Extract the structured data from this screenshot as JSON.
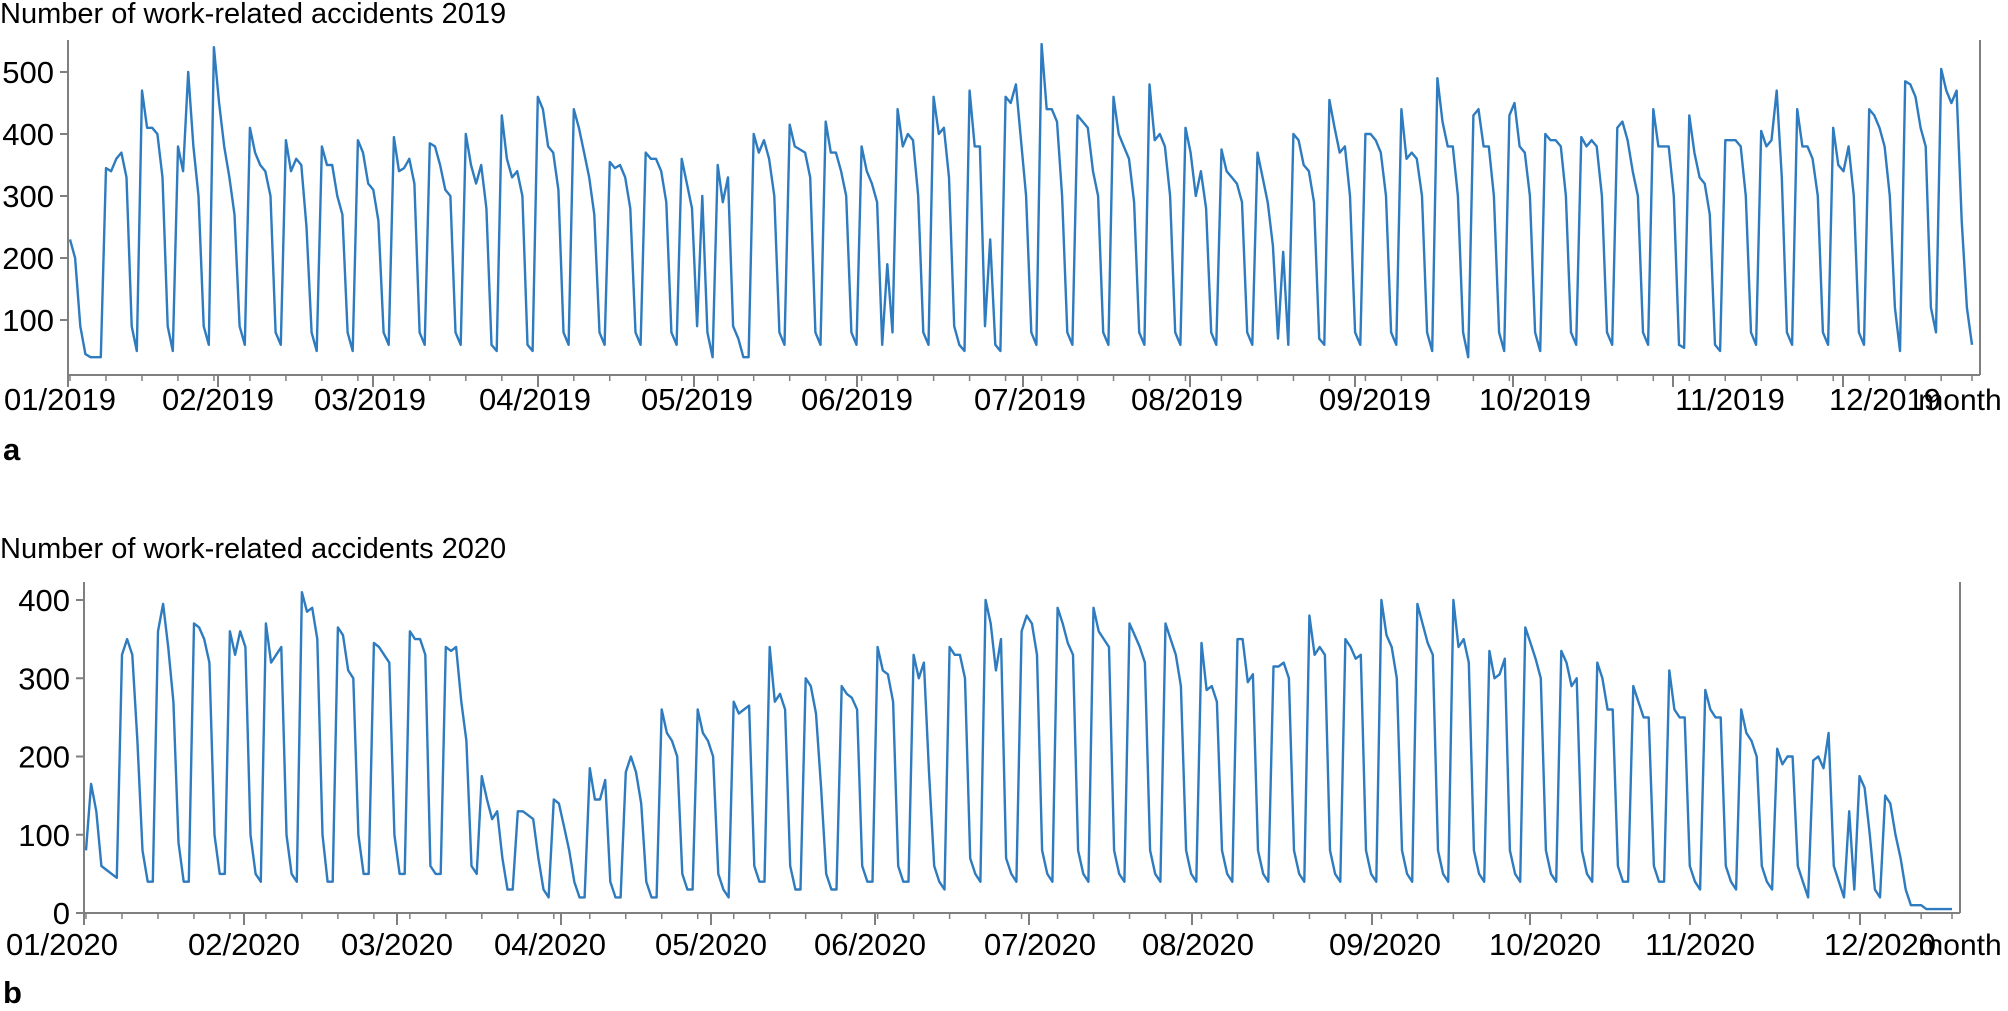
{
  "colors": {
    "series": "#2e7bbf",
    "axis": "#7f7f7f"
  },
  "chart_data": [
    {
      "type": "line",
      "panel": "a",
      "title": "Number of work-related accidents 2019",
      "xlabel": "month",
      "xtick_labels": [
        "01/2019",
        "02/2019",
        "03/2019",
        "04/2019",
        "05/2019",
        "06/2019",
        "07/2019",
        "08/2019",
        "09/2019",
        "10/2019",
        "11/2019",
        "12/2019"
      ],
      "yticks": [
        100,
        200,
        300,
        400,
        500
      ],
      "ylim": [
        0,
        560
      ],
      "grid": false,
      "resolution": "daily (approximated weekly cycle)",
      "weekly": [
        [
          230,
          200,
          90,
          45,
          40,
          40,
          40
        ],
        [
          345,
          340,
          360,
          370,
          330,
          90,
          50
        ],
        [
          470,
          410,
          410,
          400,
          330,
          90,
          50
        ],
        [
          380,
          340,
          500,
          380,
          300,
          90,
          60
        ],
        [
          540,
          450,
          380,
          330,
          270,
          90,
          60
        ],
        [
          410,
          370,
          350,
          340,
          300,
          80,
          60
        ],
        [
          390,
          340,
          360,
          350,
          250,
          80,
          50
        ],
        [
          380,
          350,
          350,
          300,
          270,
          80,
          50
        ],
        [
          390,
          370,
          320,
          310,
          260,
          80,
          60
        ],
        [
          395,
          340,
          345,
          360,
          320,
          80,
          60
        ],
        [
          385,
          380,
          350,
          310,
          300,
          80,
          60
        ],
        [
          400,
          350,
          320,
          350,
          280,
          60,
          50
        ],
        [
          430,
          360,
          330,
          340,
          300,
          60,
          50
        ],
        [
          460,
          440,
          380,
          370,
          310,
          80,
          60
        ],
        [
          440,
          410,
          370,
          330,
          270,
          80,
          60
        ],
        [
          355,
          345,
          350,
          330,
          280,
          80,
          60
        ],
        [
          370,
          360,
          360,
          340,
          290,
          80,
          60
        ],
        [
          360,
          320,
          280,
          90,
          300,
          80,
          40
        ],
        [
          350,
          290,
          330,
          90,
          70,
          40,
          40
        ],
        [
          400,
          370,
          390,
          360,
          300,
          80,
          60
        ],
        [
          415,
          380,
          375,
          370,
          330,
          80,
          60
        ],
        [
          420,
          370,
          370,
          340,
          300,
          80,
          60
        ],
        [
          380,
          340,
          320,
          290,
          60,
          190,
          80
        ],
        [
          440,
          380,
          400,
          390,
          300,
          80,
          60
        ],
        [
          460,
          400,
          410,
          330,
          90,
          60,
          50
        ],
        [
          470,
          380,
          380,
          90,
          230,
          60,
          50
        ],
        [
          460,
          450,
          480,
          390,
          300,
          80,
          60
        ],
        [
          545,
          440,
          440,
          420,
          300,
          80,
          60
        ],
        [
          430,
          420,
          410,
          340,
          300,
          80,
          60
        ],
        [
          460,
          400,
          380,
          360,
          290,
          80,
          60
        ],
        [
          480,
          390,
          400,
          380,
          300,
          80,
          60
        ],
        [
          410,
          370,
          300,
          340,
          280,
          80,
          60
        ],
        [
          375,
          340,
          330,
          320,
          290,
          80,
          60
        ],
        [
          370,
          330,
          290,
          220,
          70,
          210,
          60
        ],
        [
          400,
          390,
          350,
          340,
          290,
          70,
          60
        ],
        [
          455,
          410,
          370,
          380,
          300,
          80,
          60
        ],
        [
          400,
          400,
          390,
          370,
          300,
          80,
          60
        ],
        [
          440,
          360,
          370,
          360,
          300,
          80,
          50
        ],
        [
          490,
          420,
          380,
          380,
          300,
          80,
          40
        ],
        [
          430,
          440,
          380,
          380,
          300,
          80,
          50
        ],
        [
          430,
          450,
          380,
          370,
          300,
          80,
          50
        ],
        [
          400,
          390,
          390,
          380,
          300,
          80,
          60
        ],
        [
          395,
          380,
          390,
          380,
          300,
          80,
          60
        ],
        [
          410,
          420,
          390,
          340,
          300,
          80,
          60
        ],
        [
          440,
          380,
          380,
          380,
          300,
          60,
          55
        ],
        [
          430,
          370,
          330,
          320,
          270,
          60,
          50
        ],
        [
          390,
          390,
          390,
          380,
          300,
          80,
          60
        ],
        [
          405,
          380,
          390,
          470,
          330,
          80,
          60
        ],
        [
          440,
          380,
          380,
          360,
          300,
          80,
          60
        ],
        [
          410,
          350,
          340,
          380,
          300,
          80,
          60
        ],
        [
          440,
          430,
          410,
          380,
          300,
          120,
          50
        ],
        [
          485,
          480,
          460,
          410,
          380,
          120,
          80
        ],
        [
          505,
          470,
          450,
          470,
          260,
          120,
          60
        ]
      ]
    },
    {
      "type": "line",
      "panel": "b",
      "title": "Number of work-related accidents 2020",
      "xlabel": "month",
      "xtick_labels": [
        "01/2020",
        "02/2020",
        "03/2020",
        "04/2020",
        "05/2020",
        "06/2020",
        "07/2020",
        "08/2020",
        "09/2020",
        "10/2020",
        "11/2020",
        "12/2020"
      ],
      "yticks": [
        0,
        100,
        200,
        300,
        400
      ],
      "ylim": [
        0,
        410
      ],
      "grid": false,
      "resolution": "daily (approximated weekly cycle)",
      "weekly": [
        [
          80,
          165,
          130,
          60,
          55,
          50,
          45
        ],
        [
          330,
          350,
          330,
          220,
          80,
          40,
          40
        ],
        [
          360,
          395,
          340,
          270,
          90,
          40,
          40
        ],
        [
          370,
          365,
          350,
          320,
          100,
          50,
          50
        ],
        [
          360,
          330,
          360,
          340,
          100,
          50,
          40
        ],
        [
          370,
          320,
          330,
          340,
          100,
          50,
          40
        ],
        [
          410,
          385,
          390,
          350,
          100,
          40,
          40
        ],
        [
          365,
          355,
          310,
          300,
          100,
          50,
          50
        ],
        [
          345,
          340,
          330,
          320,
          100,
          50,
          50
        ],
        [
          360,
          350,
          350,
          330,
          60,
          50,
          50
        ],
        [
          340,
          335,
          340,
          270,
          220,
          60,
          50
        ],
        [
          175,
          145,
          120,
          130,
          70,
          30,
          30
        ],
        [
          130,
          130,
          125,
          120,
          70,
          30,
          20
        ],
        [
          145,
          140,
          110,
          80,
          40,
          20,
          20
        ],
        [
          185,
          145,
          145,
          170,
          40,
          20,
          20
        ],
        [
          180,
          200,
          180,
          140,
          40,
          20,
          20
        ],
        [
          260,
          230,
          220,
          200,
          50,
          30,
          30
        ],
        [
          260,
          230,
          220,
          200,
          50,
          30,
          20
        ],
        [
          270,
          255,
          260,
          265,
          60,
          40,
          40
        ],
        [
          340,
          270,
          280,
          260,
          60,
          30,
          30
        ],
        [
          300,
          290,
          255,
          160,
          50,
          30,
          30
        ],
        [
          290,
          280,
          275,
          260,
          60,
          40,
          40
        ],
        [
          340,
          310,
          305,
          270,
          60,
          40,
          40
        ],
        [
          330,
          300,
          320,
          180,
          60,
          40,
          30
        ],
        [
          340,
          330,
          330,
          300,
          70,
          50,
          40
        ],
        [
          400,
          370,
          310,
          350,
          70,
          50,
          40
        ],
        [
          360,
          380,
          370,
          330,
          80,
          50,
          40
        ],
        [
          390,
          370,
          345,
          330,
          80,
          50,
          40
        ],
        [
          390,
          360,
          350,
          340,
          80,
          50,
          40
        ],
        [
          370,
          355,
          340,
          320,
          80,
          50,
          40
        ],
        [
          370,
          350,
          330,
          290,
          80,
          50,
          40
        ],
        [
          345,
          285,
          290,
          270,
          80,
          50,
          40
        ],
        [
          350,
          350,
          295,
          305,
          80,
          50,
          40
        ],
        [
          315,
          315,
          320,
          300,
          80,
          50,
          40
        ],
        [
          380,
          330,
          340,
          330,
          80,
          50,
          40
        ],
        [
          350,
          340,
          325,
          330,
          80,
          50,
          40
        ],
        [
          400,
          355,
          340,
          300,
          80,
          50,
          40
        ],
        [
          395,
          370,
          345,
          330,
          80,
          50,
          40
        ],
        [
          400,
          340,
          350,
          320,
          80,
          50,
          40
        ],
        [
          335,
          300,
          305,
          325,
          80,
          50,
          40
        ],
        [
          365,
          345,
          325,
          300,
          80,
          50,
          40
        ],
        [
          335,
          320,
          290,
          300,
          80,
          50,
          40
        ],
        [
          320,
          300,
          260,
          260,
          60,
          40,
          40
        ],
        [
          290,
          270,
          250,
          250,
          60,
          40,
          40
        ],
        [
          310,
          260,
          250,
          250,
          60,
          40,
          30
        ],
        [
          285,
          260,
          250,
          250,
          60,
          40,
          30
        ],
        [
          260,
          230,
          220,
          200,
          60,
          40,
          30
        ],
        [
          210,
          190,
          200,
          200,
          60,
          40,
          20
        ],
        [
          195,
          200,
          185,
          230,
          60,
          40,
          20
        ],
        [
          130,
          30,
          175,
          160,
          100,
          30,
          20
        ],
        [
          150,
          140,
          100,
          70,
          30,
          10,
          10
        ],
        [
          10,
          5,
          5,
          5,
          5,
          5,
          5
        ]
      ]
    }
  ]
}
